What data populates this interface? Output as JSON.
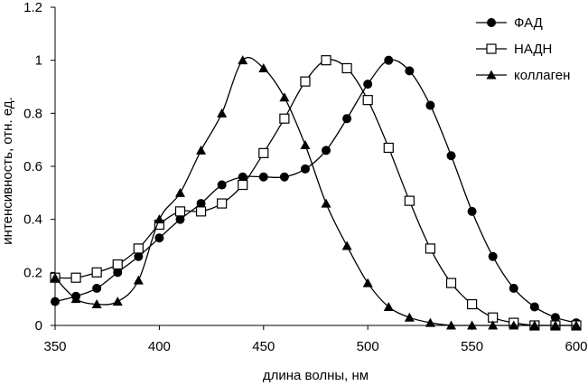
{
  "chart_data": {
    "type": "line",
    "title": "",
    "xlabel": "длина волны, нм",
    "ylabel": "интенсивность, отн. ед.",
    "xlim": [
      350,
      600
    ],
    "ylim": [
      0,
      1.2
    ],
    "x_ticks": [
      350,
      400,
      450,
      500,
      550,
      600
    ],
    "y_ticks": [
      0,
      0.2,
      0.4,
      0.6,
      0.8,
      1,
      1.2
    ],
    "x_tick_labels": [
      "350",
      "400",
      "450",
      "500",
      "550",
      "600"
    ],
    "y_tick_labels": [
      "0",
      "0.2",
      "0.4",
      "0.6",
      "0.8",
      "1",
      "1.2"
    ],
    "grid": false,
    "legend_position": "top-right",
    "series": [
      {
        "name": "ФАД",
        "marker": "filled-circle",
        "color": "#000000",
        "x": [
          350,
          360,
          370,
          380,
          390,
          400,
          410,
          420,
          430,
          440,
          450,
          460,
          470,
          480,
          490,
          500,
          510,
          520,
          530,
          540,
          550,
          560,
          570,
          580,
          590,
          600
        ],
        "values": [
          0.09,
          0.11,
          0.14,
          0.2,
          0.26,
          0.33,
          0.4,
          0.46,
          0.53,
          0.56,
          0.56,
          0.56,
          0.59,
          0.66,
          0.78,
          0.91,
          1.0,
          0.96,
          0.83,
          0.64,
          0.43,
          0.26,
          0.14,
          0.07,
          0.03,
          0.01
        ]
      },
      {
        "name": "НАДН",
        "marker": "open-square",
        "color": "#000000",
        "x": [
          350,
          360,
          370,
          380,
          390,
          400,
          410,
          420,
          430,
          440,
          450,
          460,
          470,
          480,
          490,
          500,
          510,
          520,
          530,
          540,
          550,
          560,
          570,
          580,
          590,
          600
        ],
        "values": [
          0.18,
          0.18,
          0.2,
          0.23,
          0.29,
          0.38,
          0.43,
          0.43,
          0.46,
          0.53,
          0.65,
          0.78,
          0.92,
          1.0,
          0.97,
          0.85,
          0.67,
          0.47,
          0.29,
          0.16,
          0.08,
          0.03,
          0.01,
          0.0,
          0.0,
          0.0
        ]
      },
      {
        "name": "коллаген",
        "marker": "filled-triangle",
        "color": "#000000",
        "x": [
          350,
          360,
          370,
          380,
          390,
          400,
          410,
          420,
          430,
          440,
          450,
          460,
          470,
          480,
          490,
          500,
          510,
          520,
          530,
          540,
          550,
          560,
          570,
          580,
          590,
          600
        ],
        "values": [
          0.18,
          0.1,
          0.08,
          0.09,
          0.17,
          0.4,
          0.5,
          0.66,
          0.8,
          1.0,
          0.97,
          0.86,
          0.68,
          0.46,
          0.3,
          0.16,
          0.07,
          0.03,
          0.01,
          0.0,
          0.0,
          0.0,
          0.0,
          0.0,
          0.0,
          0.0
        ]
      }
    ]
  }
}
